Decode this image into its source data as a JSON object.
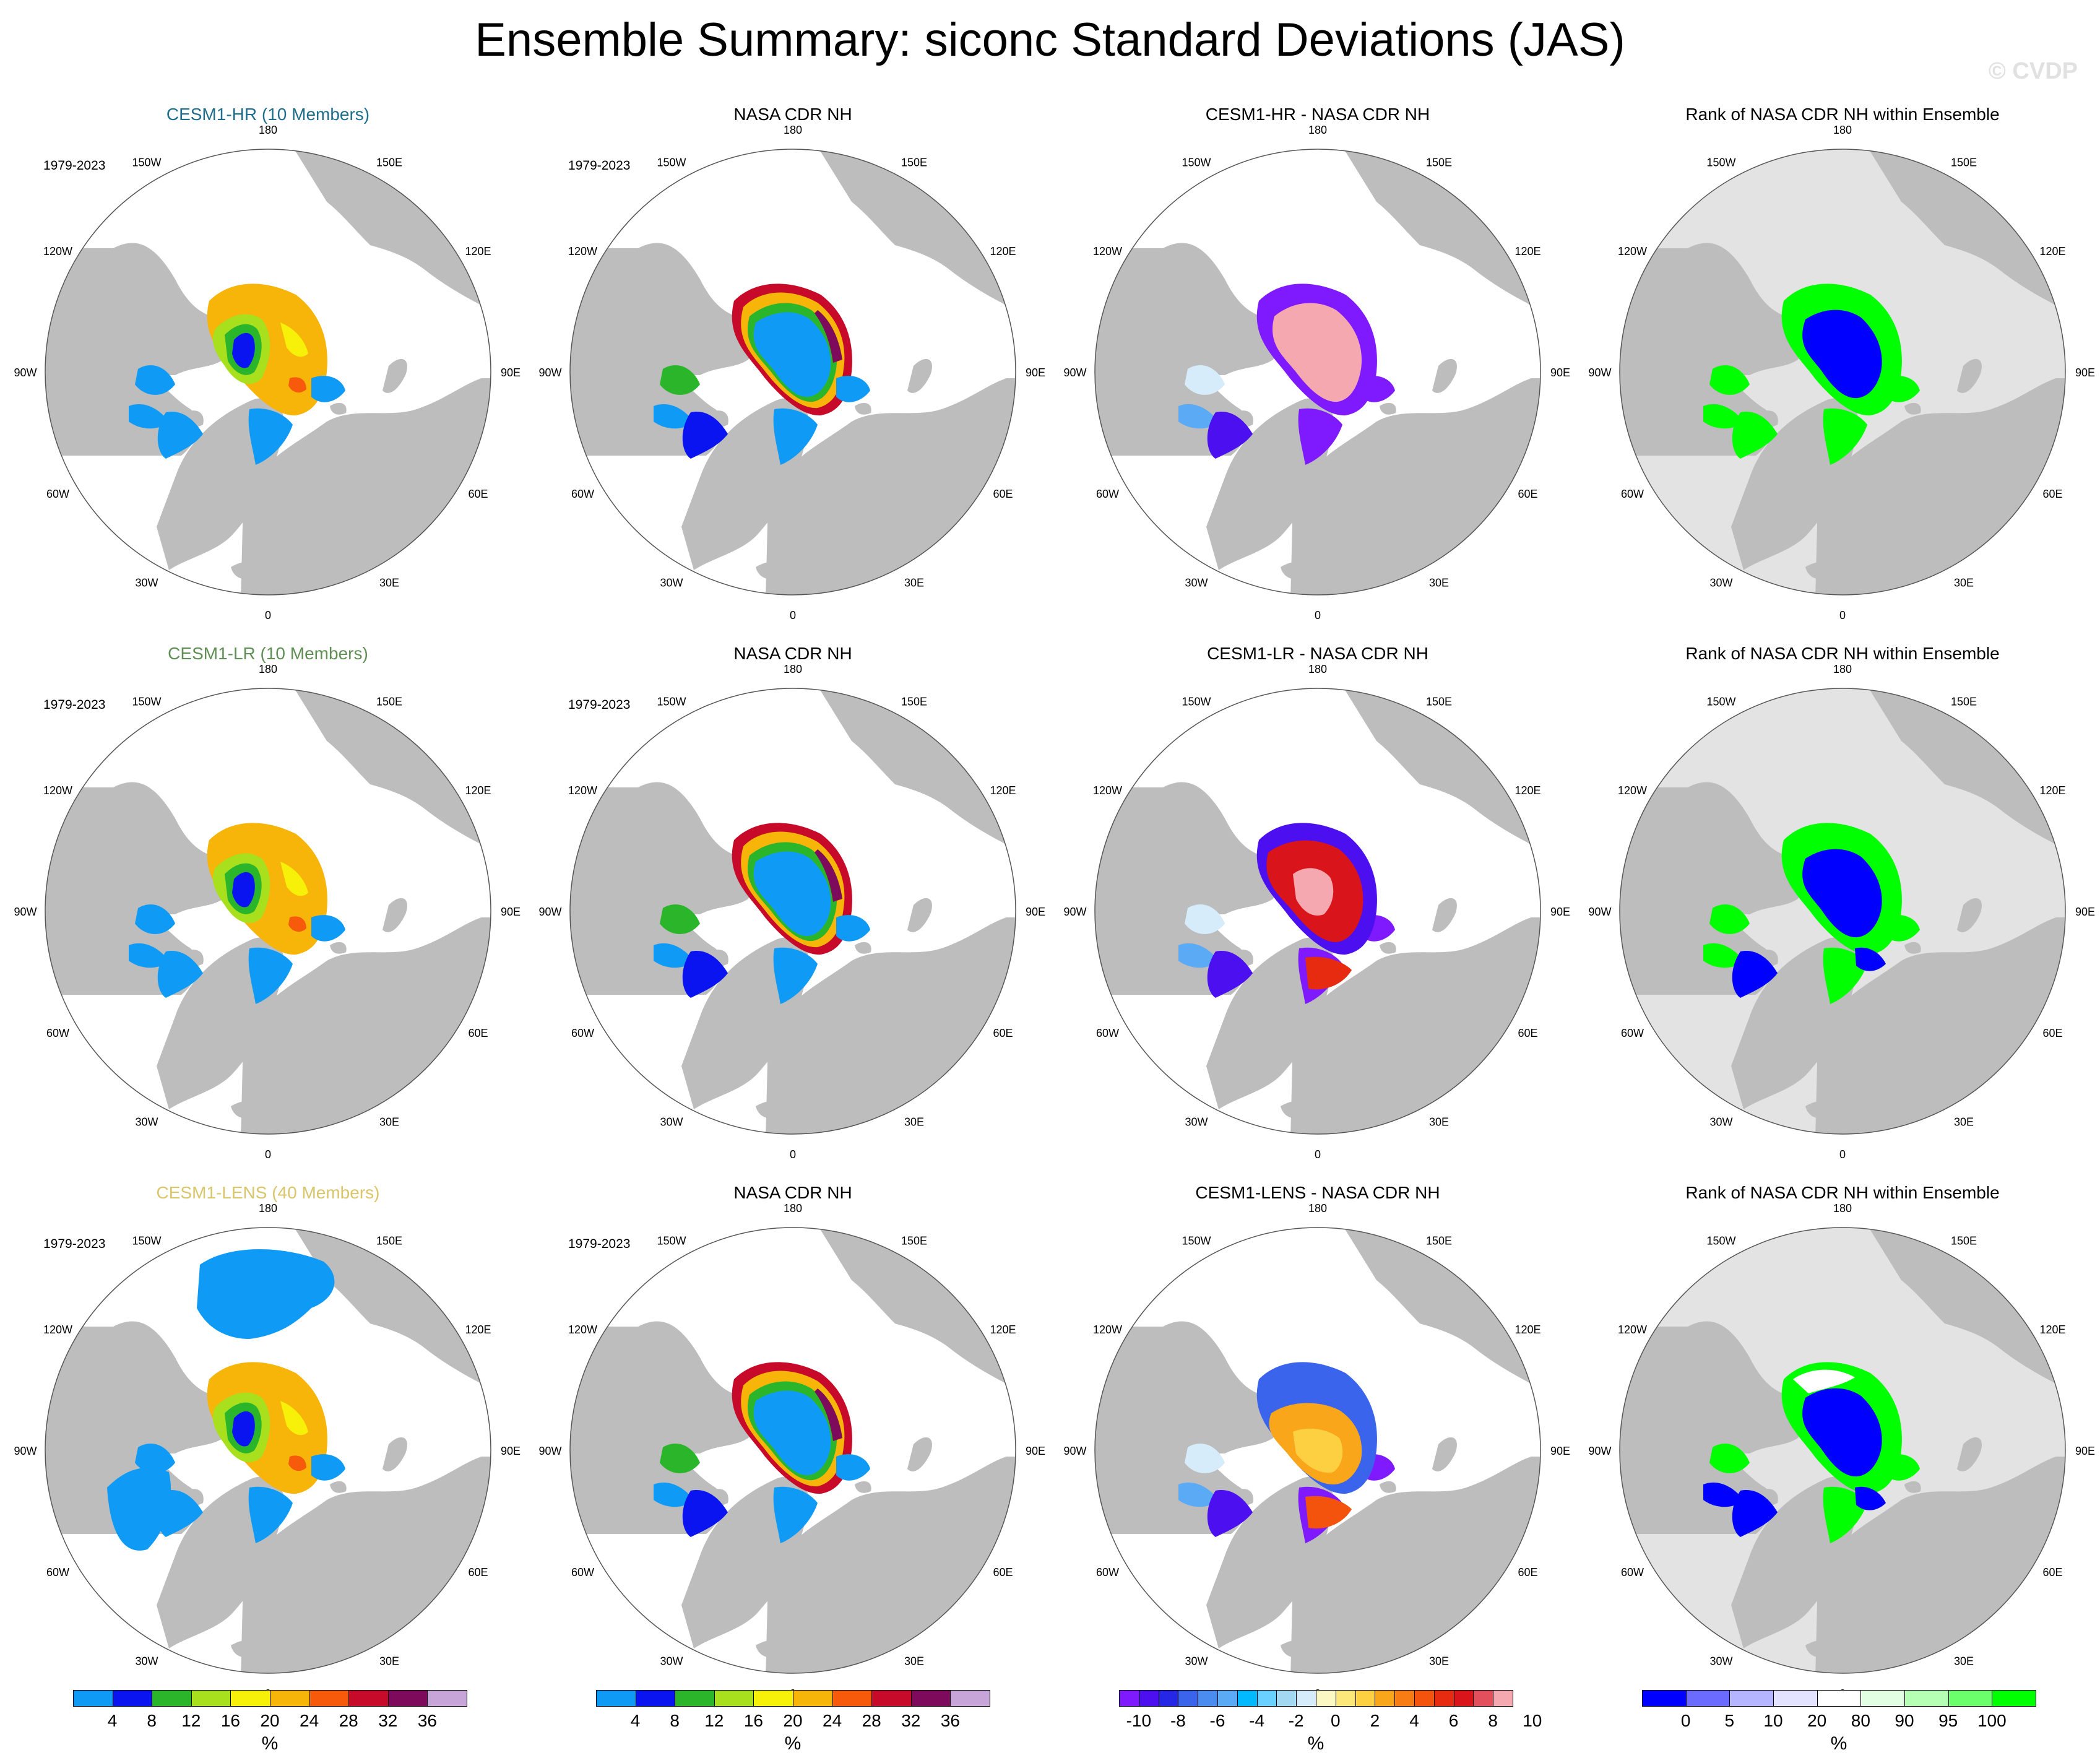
{
  "figure": {
    "title": "Ensemble Summary: siconc Standard Deviations (JAS)",
    "watermark": "© CVDP"
  },
  "colors": {
    "land": "#bdbdbd",
    "ocean": "#ffffff",
    "rank_background": "#e3e3e3",
    "title_hr": "#1f6e8c",
    "title_lr": "#5f8f55",
    "title_lens": "#d9c56a"
  },
  "lon_labels": [
    "180",
    "150E",
    "120E",
    "90E",
    "60E",
    "30E",
    "0",
    "30W",
    "60W",
    "90W",
    "120W",
    "150W"
  ],
  "rows": [
    {
      "panels": [
        {
          "title": "CESM1-HR (10 Members)",
          "title_color": "#1f6e8c",
          "period": "1979-2023",
          "field": "stdev",
          "variant": "hr"
        },
        {
          "title": "NASA CDR NH",
          "title_color": "#000000",
          "period": "1979-2023",
          "field": "obs_stdev",
          "variant": "obs"
        },
        {
          "title": "CESM1-HR - NASA CDR NH",
          "title_color": "#000000",
          "period": "",
          "field": "difference",
          "variant": "diff_hr"
        },
        {
          "title": "Rank of NASA CDR NH within Ensemble",
          "title_color": "#000000",
          "period": "",
          "field": "rank",
          "variant": "rank_hr"
        }
      ]
    },
    {
      "panels": [
        {
          "title": "CESM1-LR (10 Members)",
          "title_color": "#5f8f55",
          "period": "1979-2023",
          "field": "stdev",
          "variant": "lr"
        },
        {
          "title": "NASA CDR NH",
          "title_color": "#000000",
          "period": "1979-2023",
          "field": "obs_stdev",
          "variant": "obs"
        },
        {
          "title": "CESM1-LR - NASA CDR NH",
          "title_color": "#000000",
          "period": "",
          "field": "difference",
          "variant": "diff_lr"
        },
        {
          "title": "Rank of NASA CDR NH within Ensemble",
          "title_color": "#000000",
          "period": "",
          "field": "rank",
          "variant": "rank_lr"
        }
      ]
    },
    {
      "panels": [
        {
          "title": "CESM1-LENS (40 Members)",
          "title_color": "#d9c56a",
          "period": "1979-2023",
          "field": "stdev",
          "variant": "lens"
        },
        {
          "title": "NASA CDR NH",
          "title_color": "#000000",
          "period": "1979-2023",
          "field": "obs_stdev",
          "variant": "obs"
        },
        {
          "title": "CESM1-LENS - NASA CDR NH",
          "title_color": "#000000",
          "period": "",
          "field": "difference",
          "variant": "diff_lens"
        },
        {
          "title": "Rank of NASA CDR NH within Ensemble",
          "title_color": "#000000",
          "period": "",
          "field": "rank",
          "variant": "rank_lens"
        }
      ]
    }
  ],
  "colorbars": [
    {
      "unit": "%",
      "colors": [
        "#0f9bf5",
        "#0a14f0",
        "#2bb52b",
        "#a8e01d",
        "#f7f008",
        "#f7b50a",
        "#f75a0a",
        "#c80a2a",
        "#7d0a5a",
        "#c8a5d8"
      ],
      "labels": [
        "4",
        "8",
        "12",
        "16",
        "20",
        "24",
        "28",
        "32",
        "36"
      ]
    },
    {
      "unit": "%",
      "colors": [
        "#0f9bf5",
        "#0a14f0",
        "#2bb52b",
        "#a8e01d",
        "#f7f008",
        "#f7b50a",
        "#f75a0a",
        "#c80a2a",
        "#7d0a5a",
        "#c8a5d8"
      ],
      "labels": [
        "4",
        "8",
        "12",
        "16",
        "20",
        "24",
        "28",
        "32",
        "36"
      ]
    },
    {
      "unit": "%",
      "colors": [
        "#7f1aff",
        "#4c0ff0",
        "#2626e6",
        "#3a64eb",
        "#4b8cf0",
        "#5aaaf5",
        "#00b9ff",
        "#6ad0ff",
        "#a3d8f2",
        "#d7ecfa",
        "#fbf8c4",
        "#fce77b",
        "#fcd040",
        "#f9a61b",
        "#f77c13",
        "#f3530c",
        "#e72b10",
        "#d9151b",
        "#e44f5e",
        "#f6a8b0"
      ],
      "labels": [
        "-10",
        "-8",
        "-6",
        "-4",
        "-2",
        "0",
        "2",
        "4",
        "6",
        "8",
        "10"
      ]
    },
    {
      "unit": "%",
      "colors": [
        "#0000ff",
        "#6b6bff",
        "#b4b4ff",
        "#e3e3ff",
        "#ffffff",
        "#e3ffe3",
        "#b4ffb4",
        "#6bff6b",
        "#00ff00"
      ],
      "labels": [
        "0",
        "5",
        "10",
        "20",
        "80",
        "90",
        "95",
        "100"
      ]
    }
  ]
}
